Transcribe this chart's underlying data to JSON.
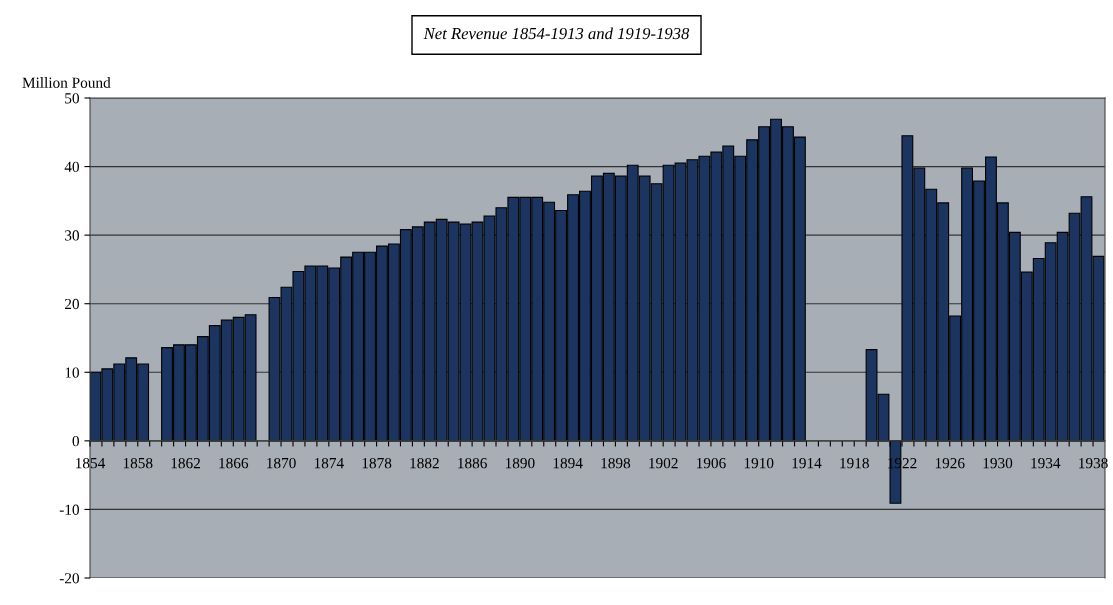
{
  "chart_data": {
    "type": "bar",
    "title": "Net Revenue 1854-1913 and 1919-1938",
    "ylabel": "Million Pound",
    "categories": [
      "1854",
      null,
      null,
      null,
      "1858",
      null,
      null,
      null,
      "1862",
      null,
      null,
      null,
      "1866",
      null,
      null,
      null,
      "1870",
      null,
      null,
      null,
      "1874",
      null,
      null,
      null,
      "1878",
      null,
      null,
      null,
      "1882",
      null,
      null,
      null,
      "1886",
      null,
      null,
      null,
      "1890",
      null,
      null,
      null,
      "1894",
      null,
      null,
      null,
      "1898",
      null,
      null,
      null,
      "1902",
      null,
      null,
      null,
      "1906",
      null,
      null,
      null,
      "1910",
      null,
      null,
      null,
      "1914",
      null,
      null,
      null,
      "1918",
      null,
      null,
      null,
      "1922",
      null,
      null,
      null,
      "1926",
      null,
      null,
      null,
      "1930",
      null,
      null,
      null,
      "1934",
      null,
      null,
      null,
      "1938"
    ],
    "values": [
      10.0,
      10.5,
      11.2,
      12.1,
      11.2,
      null,
      13.6,
      14.0,
      14.0,
      15.2,
      16.8,
      17.6,
      18.0,
      18.4,
      null,
      20.9,
      22.4,
      24.7,
      25.5,
      25.5,
      25.2,
      26.8,
      27.5,
      27.5,
      28.4,
      28.7,
      30.8,
      31.2,
      31.9,
      32.3,
      31.9,
      31.6,
      31.9,
      32.8,
      34.0,
      35.5,
      35.5,
      35.5,
      34.8,
      33.6,
      35.9,
      36.4,
      38.6,
      39.0,
      38.6,
      40.2,
      38.6,
      37.5,
      40.2,
      40.5,
      41.0,
      41.5,
      42.1,
      43.0,
      41.5,
      43.9,
      45.8,
      46.9,
      45.8,
      44.3,
      null,
      null,
      null,
      null,
      null,
      13.3,
      6.8,
      -9.1,
      44.5,
      39.8,
      36.7,
      34.7,
      18.2,
      39.8,
      37.9,
      41.4,
      34.7,
      30.4,
      24.6,
      26.6,
      28.9,
      30.4,
      33.2,
      35.6,
      26.9
    ],
    "color": "#1c3560",
    "ylim": [
      -20,
      50
    ],
    "yticks": [
      -20,
      -10,
      0,
      10,
      20,
      30,
      40,
      50
    ],
    "grid": "y",
    "legend": false
  }
}
